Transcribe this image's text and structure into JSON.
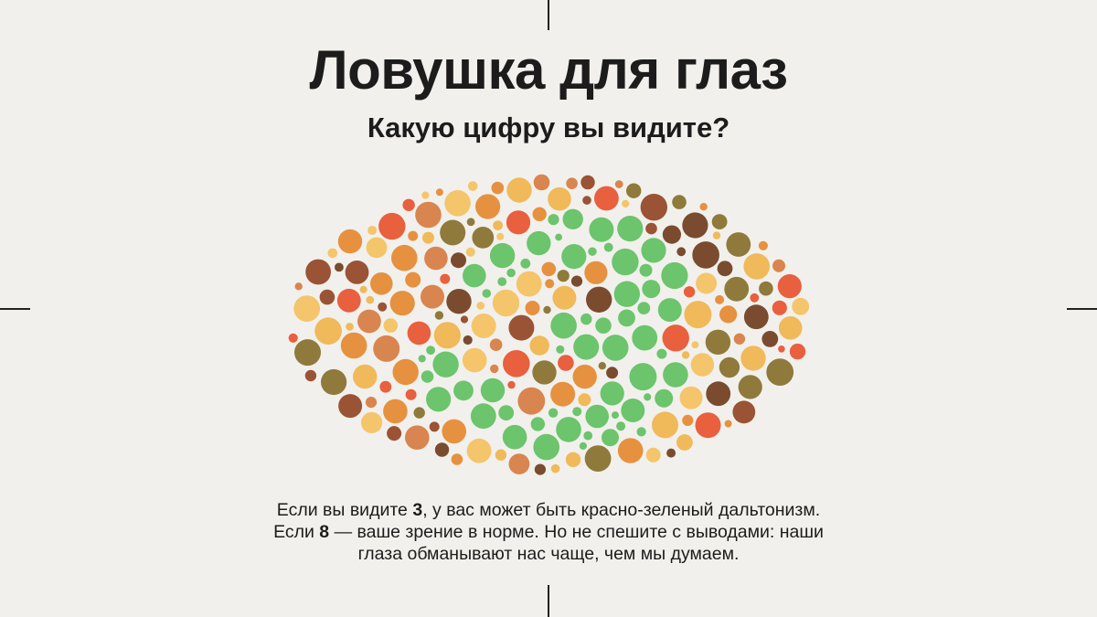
{
  "header": {
    "title": "Ловушка для глаз",
    "subtitle": "Какую цифру вы видите?"
  },
  "plate": {
    "hidden_digit_options": [
      "3",
      "8"
    ],
    "figure_color": "#6cc46c",
    "background_colors": [
      "#e8603e",
      "#f0b95a",
      "#e6913f",
      "#9a5334",
      "#8f7a3c",
      "#d9854f",
      "#f4c56a",
      "#7a4b2e"
    ]
  },
  "caption": {
    "line1_pre": "Если вы видите ",
    "line1_num": "3",
    "line1_post": ", у вас может быть красно-зеленый дальтонизм.",
    "line2_pre": "Если ",
    "line2_num": "8",
    "line2_post": " — ваше зрение в норме. Но не спешите с выводами: наши",
    "line3": "глаза обманывают нас чаще, чем мы думаем."
  }
}
